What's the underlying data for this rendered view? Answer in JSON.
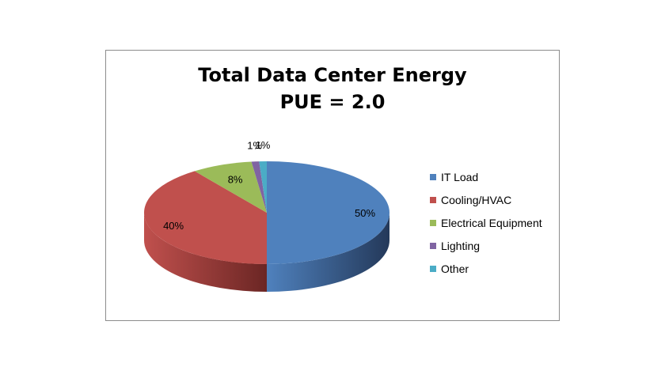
{
  "chart_data": {
    "type": "pie",
    "title": "Total Data Center Energy\nPUE = 2.0",
    "categories": [
      "IT Load",
      "Cooling/HVAC",
      "Electrical Equipment",
      "Lighting",
      "Other"
    ],
    "values": [
      50,
      40,
      8,
      1,
      1
    ],
    "value_labels": [
      "50%",
      "40%",
      "8%",
      "1%",
      "1%"
    ],
    "colors": [
      "#4f81bd",
      "#c0504d",
      "#9bbb59",
      "#8064a2",
      "#4bacc6"
    ],
    "side_colors": [
      "#24395a",
      "#6b2624",
      "#5a7030",
      "#463660",
      "#2a6a7c"
    ],
    "legend_position": "right",
    "style": "3d"
  }
}
